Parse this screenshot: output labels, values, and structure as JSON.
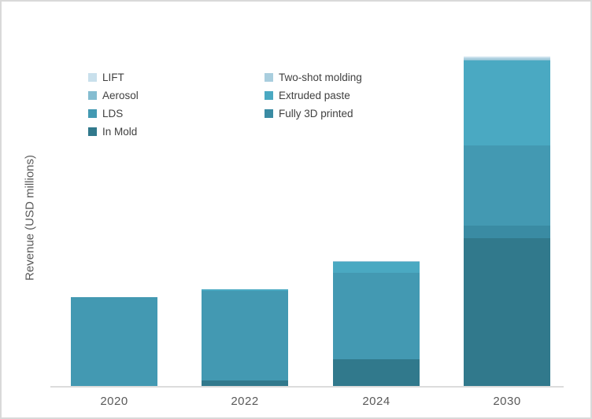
{
  "figure": {
    "background": "#ffffff",
    "border_color": "#d9d9d9",
    "axis_line_color": "#dcdcdc",
    "axis_text_color": "#595959",
    "legend_text_color": "#404040"
  },
  "chart_data": {
    "type": "bar",
    "stacked": true,
    "title": "",
    "xlabel": "",
    "ylabel": "Revenue (USD millions)",
    "categories": [
      "2020",
      "2022",
      "2024",
      "2030"
    ],
    "series": [
      {
        "name": "In Mold",
        "color": "#31798c",
        "values": [
          0,
          7,
          34,
          188
        ]
      },
      {
        "name": "Fully 3D printed",
        "color": "#3a8ba3",
        "values": [
          0,
          0,
          0,
          16
        ]
      },
      {
        "name": "LDS",
        "color": "#4399b2",
        "values": [
          113,
          114,
          110,
          102
        ]
      },
      {
        "name": "Extruded paste",
        "color": "#4aa9c2",
        "values": [
          0,
          2,
          14,
          108
        ]
      },
      {
        "name": "Aerosol",
        "color": "#85bdd1",
        "values": [
          0,
          0,
          0,
          1
        ]
      },
      {
        "name": "Two-shot molding",
        "color": "#a9cede",
        "values": [
          0,
          0,
          1,
          2
        ]
      },
      {
        "name": "LIFT",
        "color": "#c9e0ec",
        "values": [
          0,
          0,
          0,
          2
        ]
      }
    ],
    "ylim": [
      0,
      430
    ],
    "y_tick_labels": [],
    "grid": false,
    "legend_position": "top-left",
    "legend_columns": [
      [
        "LIFT",
        "Aerosol",
        "LDS",
        "In Mold"
      ],
      [
        "Two-shot molding",
        "Extruded paste",
        "Fully 3D printed"
      ]
    ]
  }
}
